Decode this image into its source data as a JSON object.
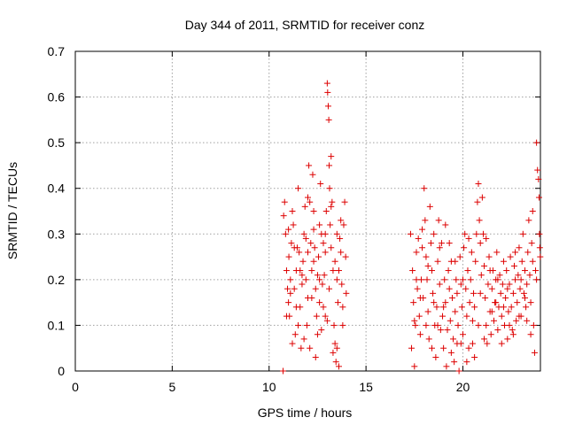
{
  "chart_data": {
    "type": "scatter",
    "title": "Day 344 of 2011, SRMTID for receiver conz",
    "xlabel": "GPS time / hours",
    "ylabel": "SRMTID / TECUs",
    "xlim": [
      0,
      24
    ],
    "ylim": [
      0,
      0.7
    ],
    "xticks": [
      0,
      5,
      10,
      15,
      20
    ],
    "yticks": [
      0,
      0.1,
      0.2,
      0.3,
      0.4,
      0.5,
      0.6,
      0.7
    ],
    "ytick_labels": [
      "0",
      "0.1",
      "0.2",
      "0.3",
      "0.4",
      "0.5",
      "0.6",
      "0.7"
    ],
    "grid": true,
    "legend": "none",
    "marker": "plus",
    "color": "#dd0000",
    "series": [
      {
        "points": [
          [
            10.72,
            0.0
          ],
          [
            10.75,
            0.34
          ],
          [
            10.8,
            0.37
          ],
          [
            10.85,
            0.3
          ],
          [
            10.9,
            0.22
          ],
          [
            10.95,
            0.18
          ],
          [
            11.0,
            0.15
          ],
          [
            11.02,
            0.25
          ],
          [
            11.05,
            0.12
          ],
          [
            11.1,
            0.2
          ],
          [
            11.15,
            0.28
          ],
          [
            11.2,
            0.35
          ],
          [
            11.25,
            0.32
          ],
          [
            11.3,
            0.18
          ],
          [
            11.35,
            0.08
          ],
          [
            11.4,
            0.22
          ],
          [
            11.45,
            0.27
          ],
          [
            11.5,
            0.4
          ],
          [
            11.55,
            0.26
          ],
          [
            11.6,
            0.14
          ],
          [
            11.65,
            0.05
          ],
          [
            11.7,
            0.19
          ],
          [
            11.75,
            0.24
          ],
          [
            11.8,
            0.3
          ],
          [
            11.85,
            0.36
          ],
          [
            11.9,
            0.2
          ],
          [
            11.95,
            0.1
          ],
          [
            12.0,
            0.16
          ],
          [
            12.05,
            0.45
          ],
          [
            12.1,
            0.37
          ],
          [
            12.15,
            0.28
          ],
          [
            12.2,
            0.22
          ],
          [
            12.25,
            0.43
          ],
          [
            12.3,
            0.35
          ],
          [
            12.35,
            0.27
          ],
          [
            12.4,
            0.18
          ],
          [
            12.45,
            0.12
          ],
          [
            12.5,
            0.08
          ],
          [
            12.55,
            0.25
          ],
          [
            12.6,
            0.32
          ],
          [
            12.65,
            0.41
          ],
          [
            12.7,
            0.3
          ],
          [
            12.75,
            0.19
          ],
          [
            12.8,
            0.14
          ],
          [
            12.85,
            0.21
          ],
          [
            12.9,
            0.26
          ],
          [
            12.95,
            0.35
          ],
          [
            13.0,
            0.63
          ],
          [
            13.02,
            0.61
          ],
          [
            13.05,
            0.58
          ],
          [
            13.08,
            0.55
          ],
          [
            13.1,
            0.45
          ],
          [
            13.12,
            0.4
          ],
          [
            13.15,
            0.32
          ],
          [
            13.2,
            0.47
          ],
          [
            13.25,
            0.37
          ],
          [
            13.3,
            0.22
          ],
          [
            13.35,
            0.1
          ],
          [
            13.4,
            0.06
          ],
          [
            13.45,
            0.02
          ],
          [
            13.5,
            0.05
          ],
          [
            13.55,
            0.15
          ],
          [
            13.6,
            0.22
          ],
          [
            13.65,
            0.29
          ],
          [
            13.7,
            0.26
          ],
          [
            13.75,
            0.19
          ],
          [
            13.8,
            0.14
          ],
          [
            13.85,
            0.32
          ],
          [
            13.9,
            0.37
          ],
          [
            13.95,
            0.25
          ],
          [
            13.98,
            0.17
          ],
          [
            11.0,
            0.31
          ],
          [
            11.3,
            0.27
          ],
          [
            11.6,
            0.22
          ],
          [
            11.9,
            0.29
          ],
          [
            12.2,
            0.16
          ],
          [
            12.5,
            0.21
          ],
          [
            12.8,
            0.28
          ],
          [
            13.1,
            0.18
          ],
          [
            13.4,
            0.24
          ],
          [
            13.7,
            0.33
          ],
          [
            10.9,
            0.12
          ],
          [
            11.2,
            0.06
          ],
          [
            11.5,
            0.1
          ],
          [
            11.8,
            0.07
          ],
          [
            12.1,
            0.05
          ],
          [
            12.4,
            0.03
          ],
          [
            12.7,
            0.09
          ],
          [
            13.0,
            0.11
          ],
          [
            13.3,
            0.04
          ],
          [
            13.6,
            0.01
          ],
          [
            12.0,
            0.38
          ],
          [
            12.3,
            0.24
          ],
          [
            12.6,
            0.2
          ],
          [
            12.9,
            0.3
          ],
          [
            13.2,
            0.27
          ],
          [
            13.5,
            0.2
          ],
          [
            13.8,
            0.1
          ],
          [
            11.1,
            0.17
          ],
          [
            11.4,
            0.14
          ],
          [
            11.7,
            0.21
          ],
          [
            12.0,
            0.26
          ],
          [
            12.3,
            0.31
          ],
          [
            12.6,
            0.15
          ],
          [
            12.9,
            0.12
          ],
          [
            13.2,
            0.36
          ],
          [
            13.5,
            0.3
          ],
          [
            17.3,
            0.3
          ],
          [
            17.35,
            0.05
          ],
          [
            17.4,
            0.22
          ],
          [
            17.45,
            0.15
          ],
          [
            17.5,
            0.01
          ],
          [
            17.55,
            0.1
          ],
          [
            17.6,
            0.26
          ],
          [
            17.65,
            0.18
          ],
          [
            17.7,
            0.29
          ],
          [
            17.75,
            0.12
          ],
          [
            17.8,
            0.08
          ],
          [
            17.85,
            0.2
          ],
          [
            17.9,
            0.27
          ],
          [
            17.95,
            0.16
          ],
          [
            18.0,
            0.4
          ],
          [
            18.05,
            0.33
          ],
          [
            18.1,
            0.25
          ],
          [
            18.15,
            0.2
          ],
          [
            18.2,
            0.13
          ],
          [
            18.25,
            0.07
          ],
          [
            18.3,
            0.36
          ],
          [
            18.35,
            0.28
          ],
          [
            18.4,
            0.22
          ],
          [
            18.45,
            0.17
          ],
          [
            18.5,
            0.3
          ],
          [
            18.55,
            0.1
          ],
          [
            18.6,
            0.03
          ],
          [
            18.65,
            0.14
          ],
          [
            18.7,
            0.24
          ],
          [
            18.75,
            0.33
          ],
          [
            18.8,
            0.19
          ],
          [
            18.85,
            0.09
          ],
          [
            18.9,
            0.28
          ],
          [
            18.95,
            0.12
          ],
          [
            19.0,
            0.05
          ],
          [
            19.05,
            0.2
          ],
          [
            19.1,
            0.15
          ],
          [
            19.15,
            0.01
          ],
          [
            19.2,
            0.09
          ],
          [
            19.25,
            0.22
          ],
          [
            19.3,
            0.28
          ],
          [
            19.35,
            0.11
          ],
          [
            19.4,
            0.04
          ],
          [
            19.45,
            0.16
          ],
          [
            19.5,
            0.07
          ],
          [
            19.55,
            0.02
          ],
          [
            19.6,
            0.13
          ],
          [
            19.65,
            0.2
          ],
          [
            19.7,
            0.06
          ],
          [
            19.75,
            0.1
          ],
          [
            19.8,
            0.0
          ],
          [
            19.85,
            0.25
          ],
          [
            19.9,
            0.19
          ],
          [
            19.95,
            0.14
          ],
          [
            20.0,
            0.08
          ],
          [
            20.05,
            0.27
          ],
          [
            20.1,
            0.3
          ],
          [
            20.15,
            0.18
          ],
          [
            20.2,
            0.12
          ],
          [
            20.25,
            0.22
          ],
          [
            20.3,
            0.05
          ],
          [
            20.35,
            0.15
          ],
          [
            20.4,
            0.2
          ],
          [
            20.45,
            0.26
          ],
          [
            20.5,
            0.11
          ],
          [
            20.55,
            0.17
          ],
          [
            20.6,
            0.03
          ],
          [
            20.65,
            0.24
          ],
          [
            20.7,
            0.3
          ],
          [
            20.75,
            0.37
          ],
          [
            20.8,
            0.41
          ],
          [
            20.85,
            0.33
          ],
          [
            20.9,
            0.28
          ],
          [
            20.95,
            0.21
          ],
          [
            21.0,
            0.38
          ],
          [
            21.05,
            0.3
          ],
          [
            21.1,
            0.23
          ],
          [
            21.15,
            0.16
          ],
          [
            21.2,
            0.1
          ],
          [
            21.25,
            0.06
          ],
          [
            21.3,
            0.19
          ],
          [
            21.35,
            0.25
          ],
          [
            21.4,
            0.13
          ],
          [
            21.45,
            0.08
          ],
          [
            21.5,
            0.18
          ],
          [
            21.55,
            0.22
          ],
          [
            21.6,
            0.11
          ],
          [
            21.65,
            0.15
          ],
          [
            21.7,
            0.2
          ],
          [
            21.75,
            0.26
          ],
          [
            21.8,
            0.09
          ],
          [
            21.85,
            0.14
          ],
          [
            21.9,
            0.21
          ],
          [
            21.95,
            0.17
          ],
          [
            22.0,
            0.12
          ],
          [
            22.05,
            0.19
          ],
          [
            22.1,
            0.24
          ],
          [
            22.15,
            0.1
          ],
          [
            22.2,
            0.16
          ],
          [
            22.25,
            0.22
          ],
          [
            22.3,
            0.07
          ],
          [
            22.35,
            0.13
          ],
          [
            22.4,
            0.19
          ],
          [
            22.45,
            0.25
          ],
          [
            22.5,
            0.14
          ],
          [
            22.55,
            0.09
          ],
          [
            22.6,
            0.17
          ],
          [
            22.65,
            0.23
          ],
          [
            22.7,
            0.2
          ],
          [
            22.75,
            0.11
          ],
          [
            22.8,
            0.15
          ],
          [
            22.85,
            0.21
          ],
          [
            22.9,
            0.27
          ],
          [
            22.95,
            0.18
          ],
          [
            23.0,
            0.12
          ],
          [
            23.05,
            0.24
          ],
          [
            23.1,
            0.3
          ],
          [
            23.15,
            0.17
          ],
          [
            23.2,
            0.22
          ],
          [
            23.25,
            0.14
          ],
          [
            23.3,
            0.19
          ],
          [
            23.35,
            0.26
          ],
          [
            23.4,
            0.33
          ],
          [
            23.45,
            0.21
          ],
          [
            23.5,
            0.15
          ],
          [
            23.55,
            0.28
          ],
          [
            23.6,
            0.35
          ],
          [
            23.65,
            0.1
          ],
          [
            23.7,
            0.04
          ],
          [
            23.75,
            0.22
          ],
          [
            23.8,
            0.5
          ],
          [
            23.85,
            0.44
          ],
          [
            23.9,
            0.42
          ],
          [
            23.93,
            0.38
          ],
          [
            23.95,
            0.3
          ],
          [
            23.97,
            0.27
          ],
          [
            23.99,
            0.25
          ],
          [
            17.6,
            0.2
          ],
          [
            17.9,
            0.31
          ],
          [
            18.2,
            0.23
          ],
          [
            18.5,
            0.15
          ],
          [
            18.8,
            0.27
          ],
          [
            19.1,
            0.32
          ],
          [
            19.4,
            0.24
          ],
          [
            19.7,
            0.17
          ],
          [
            20.0,
            0.2
          ],
          [
            20.3,
            0.29
          ],
          [
            20.6,
            0.14
          ],
          [
            20.9,
            0.17
          ],
          [
            21.2,
            0.29
          ],
          [
            21.5,
            0.13
          ],
          [
            21.8,
            0.2
          ],
          [
            22.1,
            0.14
          ],
          [
            22.4,
            0.1
          ],
          [
            22.7,
            0.26
          ],
          [
            23.0,
            0.2
          ],
          [
            23.3,
            0.11
          ],
          [
            23.6,
            0.24
          ],
          [
            17.5,
            0.11
          ],
          [
            17.8,
            0.16
          ],
          [
            18.1,
            0.1
          ],
          [
            18.4,
            0.05
          ],
          [
            18.7,
            0.1
          ],
          [
            19.0,
            0.14
          ],
          [
            19.3,
            0.18
          ],
          [
            19.6,
            0.24
          ],
          [
            19.9,
            0.06
          ],
          [
            20.2,
            0.02
          ],
          [
            20.5,
            0.06
          ],
          [
            20.8,
            0.1
          ],
          [
            21.1,
            0.07
          ],
          [
            21.4,
            0.22
          ],
          [
            21.7,
            0.15
          ],
          [
            22.0,
            0.06
          ],
          [
            22.3,
            0.18
          ],
          [
            22.6,
            0.08
          ],
          [
            22.9,
            0.12
          ],
          [
            23.2,
            0.16
          ],
          [
            23.5,
            0.08
          ],
          [
            23.8,
            0.2
          ]
        ]
      }
    ]
  }
}
